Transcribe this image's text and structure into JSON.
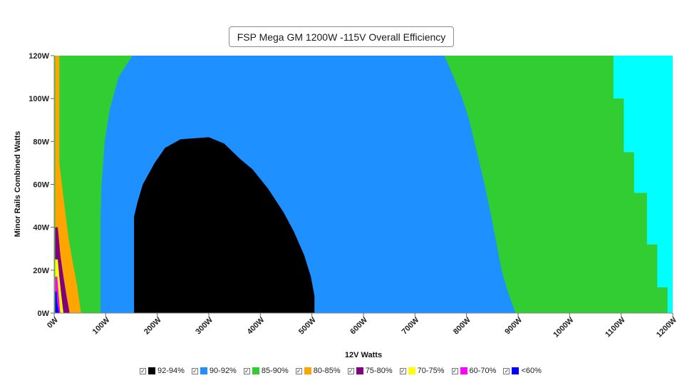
{
  "chart_data": {
    "type": "heatmap",
    "title": "FSP Mega GM 1200W -115V Overall Efficiency",
    "xlabel": "12V Watts",
    "ylabel": "Minor Rails Combined Watts",
    "xlim": [
      0,
      1200
    ],
    "ylim": [
      0,
      120
    ],
    "x_ticks": [
      "0W",
      "100W",
      "200W",
      "300W",
      "400W",
      "500W",
      "600W",
      "700W",
      "800W",
      "900W",
      "1000W",
      "1100W",
      "1200W"
    ],
    "y_ticks": [
      "0W",
      "20W",
      "40W",
      "60W",
      "80W",
      "100W",
      "120W"
    ],
    "legend_position": "bottom",
    "legend": [
      {
        "label": "92-94%",
        "color": "#000000"
      },
      {
        "label": "90-92%",
        "color": "#1e90ff"
      },
      {
        "label": "85-90%",
        "color": "#32cd32"
      },
      {
        "label": "80-85%",
        "color": "#ffa500"
      },
      {
        "label": "75-80%",
        "color": "#800080"
      },
      {
        "label": "70-75%",
        "color": "#ffff00"
      },
      {
        "label": "60-70%",
        "color": "#ff00ff"
      },
      {
        "label": "<60%",
        "color": "#0000ff"
      }
    ],
    "regions": [
      {
        "band": "85-90%",
        "color": "#00ffff",
        "polygon": [
          [
            1080,
            120
          ],
          [
            1200,
            120
          ],
          [
            1200,
            0
          ],
          [
            1080,
            0
          ]
        ]
      },
      {
        "band": "85-90%",
        "color": "#32cd32",
        "polygon": [
          [
            0,
            0
          ],
          [
            0,
            120
          ],
          [
            1085,
            120
          ],
          [
            1085,
            100
          ],
          [
            1105,
            100
          ],
          [
            1105,
            75
          ],
          [
            1125,
            75
          ],
          [
            1125,
            56
          ],
          [
            1150,
            56
          ],
          [
            1150,
            32
          ],
          [
            1170,
            32
          ],
          [
            1170,
            12
          ],
          [
            1190,
            12
          ],
          [
            1190,
            0
          ]
        ]
      },
      {
        "band": "90-92%",
        "color": "#1e90ff",
        "polygon": [
          [
            90,
            0
          ],
          [
            90,
            45
          ],
          [
            92,
            60
          ],
          [
            98,
            80
          ],
          [
            108,
            95
          ],
          [
            125,
            110
          ],
          [
            152,
            120
          ],
          [
            757,
            120
          ],
          [
            775,
            110
          ],
          [
            792,
            100
          ],
          [
            805,
            90
          ],
          [
            820,
            75
          ],
          [
            835,
            60
          ],
          [
            848,
            45
          ],
          [
            860,
            30
          ],
          [
            868,
            20
          ],
          [
            880,
            10
          ],
          [
            895,
            0
          ]
        ]
      },
      {
        "band": "92-94%",
        "color": "#000000",
        "polygon": [
          [
            155,
            0
          ],
          [
            155,
            45
          ],
          [
            162,
            52
          ],
          [
            172,
            60
          ],
          [
            195,
            70
          ],
          [
            215,
            77
          ],
          [
            245,
            81
          ],
          [
            300,
            82
          ],
          [
            330,
            79
          ],
          [
            360,
            72
          ],
          [
            385,
            67
          ],
          [
            415,
            58
          ],
          [
            445,
            47
          ],
          [
            465,
            38
          ],
          [
            485,
            27
          ],
          [
            498,
            17
          ],
          [
            505,
            8
          ],
          [
            505,
            0
          ]
        ]
      },
      {
        "band": "80-85%",
        "color": "#ffa500",
        "polygon": [
          [
            2,
            0
          ],
          [
            2,
            120
          ],
          [
            10,
            120
          ],
          [
            10,
            70
          ],
          [
            20,
            50
          ],
          [
            28,
            35
          ],
          [
            35,
            25
          ],
          [
            45,
            12
          ],
          [
            52,
            0
          ]
        ]
      },
      {
        "band": "75-80%",
        "color": "#800080",
        "polygon": [
          [
            2,
            0
          ],
          [
            2,
            40
          ],
          [
            7,
            40
          ],
          [
            12,
            27
          ],
          [
            18,
            17
          ],
          [
            24,
            8
          ],
          [
            30,
            0
          ]
        ]
      },
      {
        "band": "70-75%",
        "color": "#ffff00",
        "polygon": [
          [
            2,
            0
          ],
          [
            2,
            25
          ],
          [
            7,
            25
          ],
          [
            10,
            17
          ],
          [
            14,
            8
          ],
          [
            18,
            0
          ]
        ]
      },
      {
        "band": "60-70%",
        "color": "#ff00ff",
        "polygon": [
          [
            2,
            0
          ],
          [
            2,
            17
          ],
          [
            6,
            17
          ],
          [
            8,
            11
          ],
          [
            10,
            5
          ],
          [
            12,
            0
          ]
        ]
      },
      {
        "band": "<60%",
        "color": "#0000ff",
        "polygon": [
          [
            2,
            0
          ],
          [
            2,
            10
          ],
          [
            5,
            10
          ],
          [
            6,
            5
          ],
          [
            8,
            2
          ],
          [
            10,
            0
          ]
        ]
      }
    ]
  }
}
